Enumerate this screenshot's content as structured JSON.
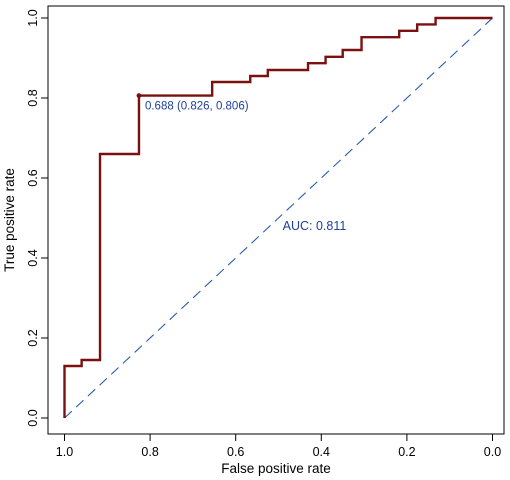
{
  "chart_data": {
    "type": "line",
    "title": "",
    "xlabel": "False positive rate",
    "ylabel": "True positive rate",
    "x_axis": "reversed",
    "xlim": [
      1.0,
      0.0
    ],
    "ylim": [
      0.0,
      1.0
    ],
    "xticks": [
      1.0,
      0.8,
      0.6,
      0.4,
      0.2,
      0.0
    ],
    "xtick_labels": [
      "1.0",
      "0.8",
      "0.6",
      "0.4",
      "0.2",
      "0.0"
    ],
    "yticks": [
      0.0,
      0.2,
      0.4,
      0.6,
      0.8,
      1.0
    ],
    "ytick_labels": [
      "0.0",
      "0.2",
      "0.4",
      "0.6",
      "0.8",
      "1.0"
    ],
    "grid": false,
    "series": [
      {
        "color": "#7a1010",
        "x": [
          1.0,
          1.0,
          0.96,
          0.96,
          0.917,
          0.917,
          0.826,
          0.826,
          0.655,
          0.655,
          0.566,
          0.566,
          0.525,
          0.525,
          0.431,
          0.431,
          0.39,
          0.39,
          0.35,
          0.35,
          0.306,
          0.306,
          0.218,
          0.218,
          0.176,
          0.176,
          0.133,
          0.133,
          0.0
        ],
        "y": [
          0.0,
          0.13,
          0.13,
          0.145,
          0.145,
          0.66,
          0.66,
          0.806,
          0.806,
          0.84,
          0.84,
          0.855,
          0.855,
          0.87,
          0.87,
          0.887,
          0.887,
          0.903,
          0.903,
          0.92,
          0.92,
          0.952,
          0.952,
          0.968,
          0.968,
          0.984,
          0.984,
          1.0,
          1.0
        ]
      }
    ],
    "reference_line": {
      "color": "#2a5db0",
      "style": "dashed",
      "x": [
        1.0,
        0.0
      ],
      "y": [
        0.0,
        1.0
      ]
    },
    "threshold_point": {
      "x": 0.826,
      "y": 0.806,
      "color": "#7a1010",
      "label": "0.688 (0.826, 0.806)",
      "label_color": "#1f3f9a"
    },
    "auc_label": {
      "text": "AUC: 0.811",
      "x": 0.5,
      "y": 0.48,
      "color": "#1f3f9a"
    }
  }
}
